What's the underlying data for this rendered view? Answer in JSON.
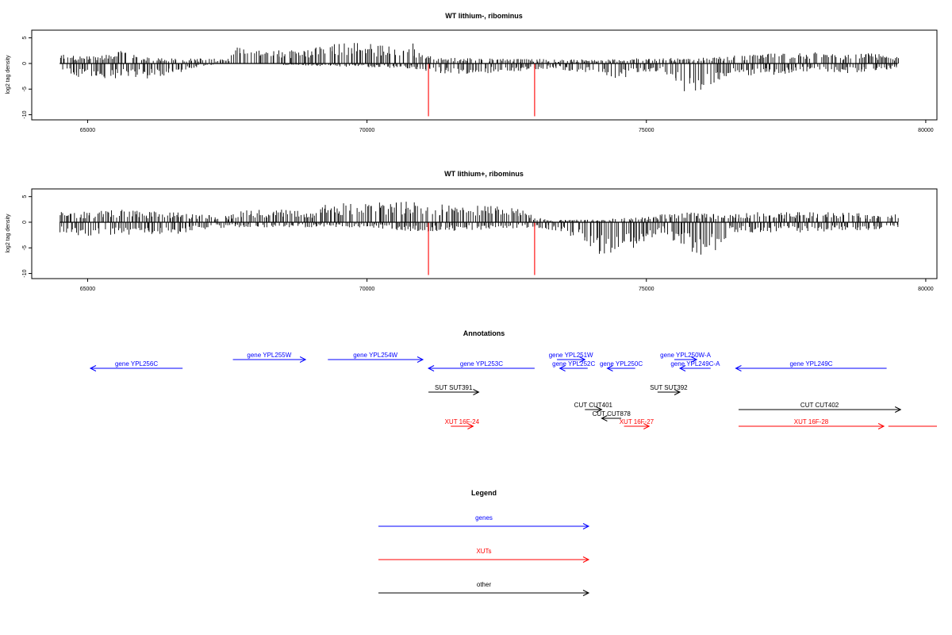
{
  "colors": {
    "genes": "#0000ff",
    "xuts": "#ff0000",
    "other": "#000000",
    "cut_line": "#ff0000"
  },
  "chart_data": [
    {
      "type": "bar",
      "title": "WT lithium-, ribominus",
      "ylabel": "log2 tag density",
      "xlim": [
        64000,
        80200
      ],
      "ylim": [
        -11,
        6.5
      ],
      "x_ticks": [
        65000,
        70000,
        75000,
        80000
      ],
      "y_ticks": [
        5,
        0,
        -5,
        -10
      ],
      "x_range": [
        64500,
        79500
      ],
      "grid": false,
      "cut_lines": [
        71100,
        73000
      ],
      "density_profile": {
        "positive": [
          {
            "x": 64500,
            "y": 2
          },
          {
            "x": 64800,
            "y": 1.5
          },
          {
            "x": 65200,
            "y": 1.5
          },
          {
            "x": 65600,
            "y": 2.5
          },
          {
            "x": 66000,
            "y": 1.2
          },
          {
            "x": 66500,
            "y": 1
          },
          {
            "x": 67500,
            "y": 1
          },
          {
            "x": 67700,
            "y": 3.5
          },
          {
            "x": 68300,
            "y": 2.5
          },
          {
            "x": 68800,
            "y": 3
          },
          {
            "x": 69200,
            "y": 3.5
          },
          {
            "x": 69500,
            "y": 4.2
          },
          {
            "x": 69900,
            "y": 4
          },
          {
            "x": 70300,
            "y": 3.8
          },
          {
            "x": 70800,
            "y": 4
          },
          {
            "x": 71000,
            "y": 2
          },
          {
            "x": 71300,
            "y": 1.2
          },
          {
            "x": 72500,
            "y": 1
          },
          {
            "x": 73500,
            "y": 0.8
          },
          {
            "x": 74200,
            "y": 0.8
          },
          {
            "x": 75000,
            "y": 1.2
          },
          {
            "x": 75600,
            "y": 1
          },
          {
            "x": 76500,
            "y": 1.5
          },
          {
            "x": 77300,
            "y": 2
          },
          {
            "x": 78000,
            "y": 2.3
          },
          {
            "x": 78500,
            "y": 1.8
          },
          {
            "x": 79000,
            "y": 2
          },
          {
            "x": 79500,
            "y": 1.5
          }
        ],
        "negative": [
          {
            "x": 64500,
            "y": -1
          },
          {
            "x": 64800,
            "y": -3
          },
          {
            "x": 65200,
            "y": -3
          },
          {
            "x": 65600,
            "y": -3
          },
          {
            "x": 66000,
            "y": -3
          },
          {
            "x": 66500,
            "y": -2.5
          },
          {
            "x": 66800,
            "y": -1
          },
          {
            "x": 67500,
            "y": 0
          },
          {
            "x": 70800,
            "y": -1
          },
          {
            "x": 71300,
            "y": -2
          },
          {
            "x": 72000,
            "y": -2
          },
          {
            "x": 72700,
            "y": -1.5
          },
          {
            "x": 73300,
            "y": -1
          },
          {
            "x": 74000,
            "y": -2
          },
          {
            "x": 74500,
            "y": -3
          },
          {
            "x": 74900,
            "y": -2
          },
          {
            "x": 75300,
            "y": -1.5
          },
          {
            "x": 75600,
            "y": -5.5
          },
          {
            "x": 75900,
            "y": -6
          },
          {
            "x": 76200,
            "y": -4
          },
          {
            "x": 76500,
            "y": -2
          },
          {
            "x": 77000,
            "y": -2.5
          },
          {
            "x": 77500,
            "y": -2
          },
          {
            "x": 78000,
            "y": -1.5
          },
          {
            "x": 78500,
            "y": -2
          },
          {
            "x": 79000,
            "y": -1.5
          },
          {
            "x": 79500,
            "y": -1
          }
        ]
      }
    },
    {
      "type": "bar",
      "title": "WT lithium+, ribominus",
      "ylabel": "log2 tag density",
      "xlim": [
        64000,
        80200
      ],
      "ylim": [
        -11,
        6.5
      ],
      "x_ticks": [
        65000,
        70000,
        75000,
        80000
      ],
      "y_ticks": [
        5,
        0,
        -5,
        -10
      ],
      "x_range": [
        64500,
        79500
      ],
      "grid": false,
      "cut_lines": [
        71100,
        73000
      ],
      "density_profile": {
        "positive": [
          {
            "x": 64500,
            "y": 2
          },
          {
            "x": 65000,
            "y": 2.2
          },
          {
            "x": 65500,
            "y": 2.5
          },
          {
            "x": 66000,
            "y": 2.2
          },
          {
            "x": 66500,
            "y": 2
          },
          {
            "x": 67000,
            "y": 1.5
          },
          {
            "x": 67500,
            "y": 1.2
          },
          {
            "x": 67800,
            "y": 2.5
          },
          {
            "x": 68500,
            "y": 2.5
          },
          {
            "x": 69000,
            "y": 2
          },
          {
            "x": 69300,
            "y": 3.8
          },
          {
            "x": 69800,
            "y": 4.2
          },
          {
            "x": 70300,
            "y": 4
          },
          {
            "x": 70800,
            "y": 4
          },
          {
            "x": 71300,
            "y": 3.5
          },
          {
            "x": 72000,
            "y": 3.5
          },
          {
            "x": 72700,
            "y": 3
          },
          {
            "x": 73000,
            "y": 1
          },
          {
            "x": 73300,
            "y": 0.5
          },
          {
            "x": 74000,
            "y": 0.5
          },
          {
            "x": 75000,
            "y": 1
          },
          {
            "x": 75500,
            "y": 2
          },
          {
            "x": 76000,
            "y": 1.8
          },
          {
            "x": 76500,
            "y": 1.5
          },
          {
            "x": 77000,
            "y": 2
          },
          {
            "x": 78000,
            "y": 2
          },
          {
            "x": 79000,
            "y": 1.8
          },
          {
            "x": 79500,
            "y": 1.5
          }
        ],
        "negative": [
          {
            "x": 64500,
            "y": -2
          },
          {
            "x": 65000,
            "y": -3
          },
          {
            "x": 65500,
            "y": -2.5
          },
          {
            "x": 66000,
            "y": -3
          },
          {
            "x": 66500,
            "y": -2.5
          },
          {
            "x": 67000,
            "y": -1.5
          },
          {
            "x": 67500,
            "y": -1
          },
          {
            "x": 68500,
            "y": -1
          },
          {
            "x": 69300,
            "y": -1
          },
          {
            "x": 70000,
            "y": -1
          },
          {
            "x": 71000,
            "y": -2
          },
          {
            "x": 72000,
            "y": -1.5
          },
          {
            "x": 73000,
            "y": -1
          },
          {
            "x": 73500,
            "y": -2
          },
          {
            "x": 73800,
            "y": -4
          },
          {
            "x": 74200,
            "y": -7
          },
          {
            "x": 74500,
            "y": -7
          },
          {
            "x": 74900,
            "y": -4
          },
          {
            "x": 75300,
            "y": -2
          },
          {
            "x": 75600,
            "y": -5
          },
          {
            "x": 75900,
            "y": -7
          },
          {
            "x": 76200,
            "y": -6
          },
          {
            "x": 76500,
            "y": -2
          },
          {
            "x": 77000,
            "y": -2
          },
          {
            "x": 78000,
            "y": -2
          },
          {
            "x": 79000,
            "y": -1.5
          },
          {
            "x": 79500,
            "y": -1
          }
        ]
      }
    }
  ],
  "annotations": {
    "title": "Annotations",
    "xlim": [
      64000,
      80200
    ],
    "features": [
      {
        "label": "gene YPL256C",
        "category": "genes",
        "start": 65050,
        "end": 66700,
        "direction": "left",
        "row": 1
      },
      {
        "label": "gene YPL255W",
        "category": "genes",
        "start": 67600,
        "end": 68900,
        "direction": "right",
        "row": 0
      },
      {
        "label": "gene YPL254W",
        "category": "genes",
        "start": 69300,
        "end": 71000,
        "direction": "right",
        "row": 0
      },
      {
        "label": "gene YPL253C",
        "category": "genes",
        "start": 71100,
        "end": 73000,
        "direction": "left",
        "row": 1
      },
      {
        "label": "gene YPL251W",
        "category": "genes",
        "start": 73400,
        "end": 73900,
        "direction": "right",
        "row": 0
      },
      {
        "label": "gene YPL252C",
        "category": "genes",
        "start": 73450,
        "end": 73950,
        "direction": "left",
        "row": 1
      },
      {
        "label": "gene YPL250C",
        "category": "genes",
        "start": 74300,
        "end": 74800,
        "direction": "left",
        "row": 1
      },
      {
        "label": "gene YPL250W-A",
        "category": "genes",
        "start": 75500,
        "end": 75900,
        "direction": "right",
        "row": 0
      },
      {
        "label": "gene YPL249C-A",
        "category": "genes",
        "start": 75600,
        "end": 76150,
        "direction": "left",
        "row": 1
      },
      {
        "label": "gene YPL249C",
        "category": "genes",
        "start": 76600,
        "end": 79300,
        "direction": "left",
        "row": 1
      },
      {
        "label": "SUT SUT391",
        "category": "other",
        "start": 71100,
        "end": 72000,
        "direction": "right",
        "row": 2
      },
      {
        "label": "SUT SUT392",
        "category": "other",
        "start": 75200,
        "end": 75600,
        "direction": "right",
        "row": 2
      },
      {
        "label": "CUT CUT401",
        "category": "other",
        "start": 73900,
        "end": 74200,
        "direction": "right",
        "row": 3
      },
      {
        "label": "CUT CUT878",
        "category": "other",
        "start": 74200,
        "end": 74550,
        "direction": "left",
        "row": 4
      },
      {
        "label": "CUT CUT402",
        "category": "other",
        "start": 76650,
        "end": 79550,
        "direction": "right",
        "row": 3
      },
      {
        "label": "XUT 16F-24",
        "category": "xuts",
        "start": 71500,
        "end": 71900,
        "direction": "right",
        "row": 5
      },
      {
        "label": "XUT 16F-27",
        "category": "xuts",
        "start": 74600,
        "end": 75050,
        "direction": "right",
        "row": 5
      },
      {
        "label": "XUT 16F-28",
        "category": "xuts",
        "start": 76650,
        "end": 79250,
        "direction": "right",
        "row": 5
      },
      {
        "label": "",
        "category": "xuts",
        "start": 79330,
        "end": 80200,
        "direction": "none",
        "row": 5
      }
    ]
  },
  "legend": {
    "title": "Legend",
    "items": [
      {
        "label": "genes",
        "category": "genes"
      },
      {
        "label": "XUTs",
        "category": "xuts"
      },
      {
        "label": "other",
        "category": "other"
      }
    ]
  }
}
